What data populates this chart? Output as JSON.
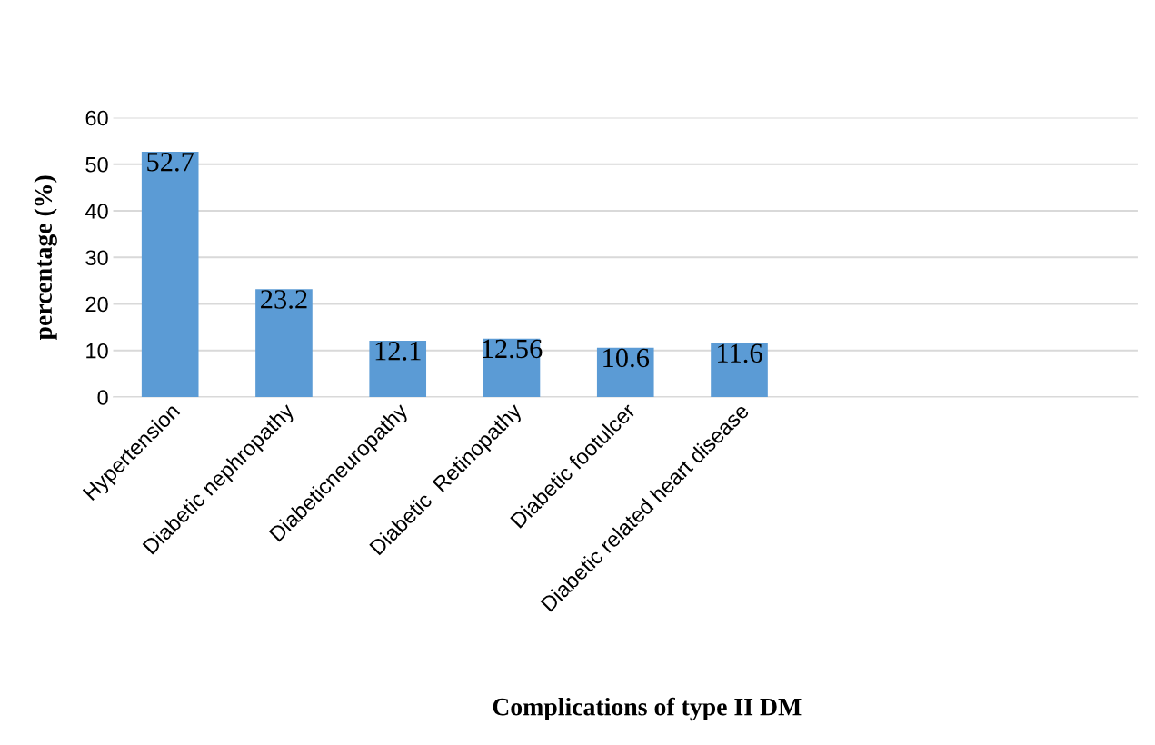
{
  "chart_data": {
    "type": "bar",
    "xlabel": "Complications of type II DM",
    "ylabel": "percentage (%)",
    "categories": [
      "Hypertension",
      "Diabetic nephropathy",
      "Diabeticneuropathy",
      "Diabetic  Retinopathy",
      "Diabetic footulcer",
      "Diabetic related heart disease",
      null,
      null,
      null
    ],
    "values": [
      52.7,
      23.2,
      12.1,
      12.56,
      10.6,
      11.6,
      null,
      null,
      null
    ],
    "color": "#5b9bd5",
    "ylim": [
      0,
      60
    ],
    "yticks": [
      0,
      10,
      20,
      30,
      40,
      50,
      60
    ],
    "grid": "y",
    "data_labels": true,
    "legend": false
  }
}
